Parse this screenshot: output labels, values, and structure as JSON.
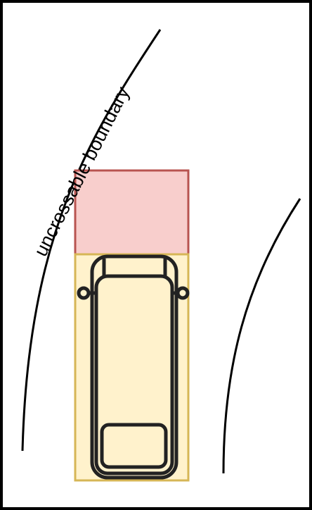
{
  "boundary_label": "uncrossable boundary",
  "colors": {
    "frame": "#000000",
    "background": "#ffffff",
    "forbidden_zone_fill": "#f8cecc",
    "forbidden_zone_stroke": "#b85450",
    "vehicle_zone_fill": "#fff2cc",
    "vehicle_zone_stroke": "#d6b656",
    "vehicle_stroke": "#222222"
  },
  "icons": [
    "vehicle-top-view-icon"
  ]
}
